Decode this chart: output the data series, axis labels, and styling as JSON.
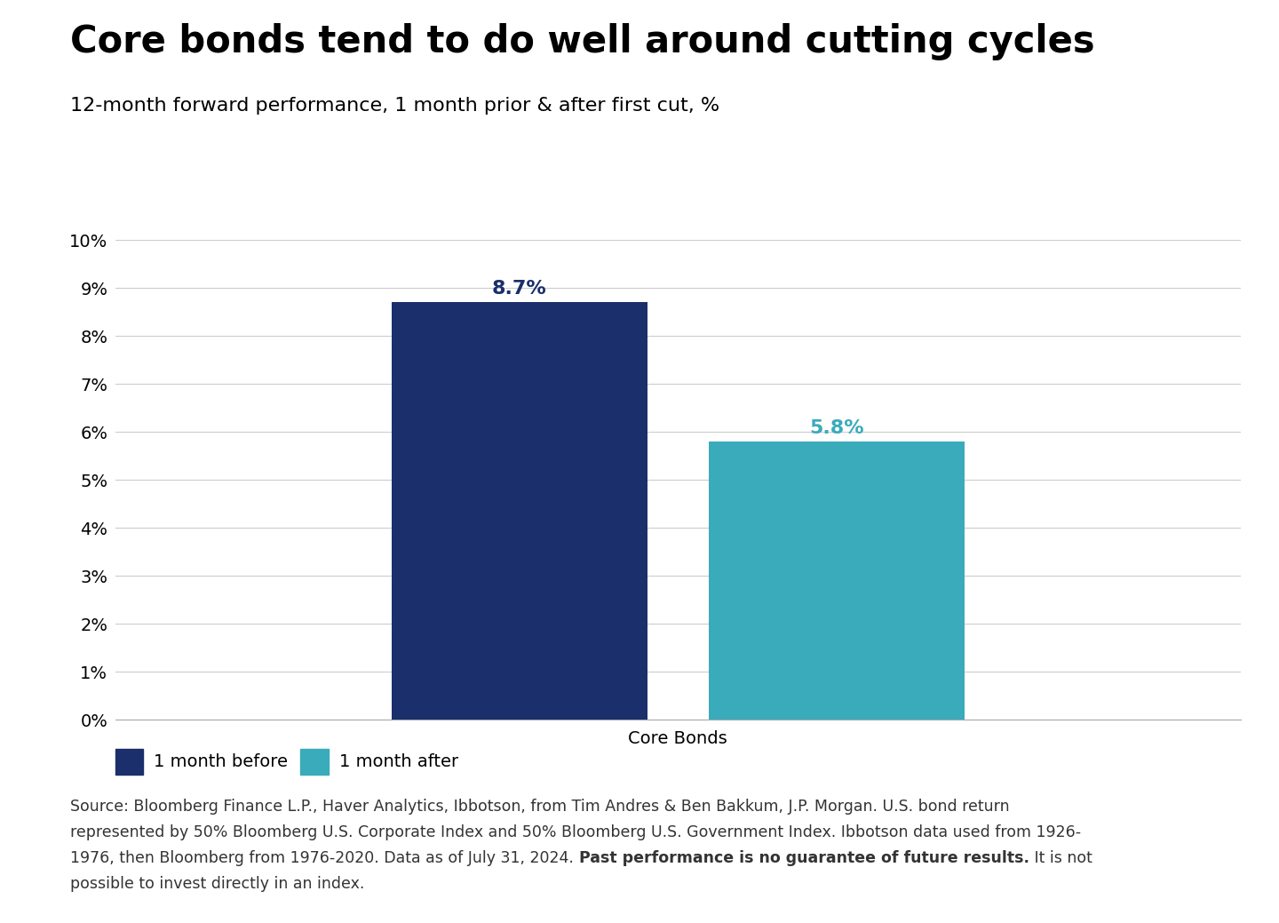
{
  "title": "Core bonds tend to do well around cutting cycles",
  "subtitle": "12-month forward performance, 1 month prior & after first cut, %",
  "categories": [
    "Core Bonds"
  ],
  "values_before": [
    8.7
  ],
  "values_after": [
    5.8
  ],
  "color_before": "#1a2f6b",
  "color_after": "#3aabbb",
  "label_before": "1 month before",
  "label_after": "1 month after",
  "xlabel": "Core Bonds",
  "ylim": [
    0,
    10
  ],
  "yticks": [
    0,
    1,
    2,
    3,
    4,
    5,
    6,
    7,
    8,
    9,
    10
  ],
  "ytick_labels": [
    "0%",
    "1%",
    "2%",
    "3%",
    "4%",
    "5%",
    "6%",
    "7%",
    "8%",
    "9%",
    "10%"
  ],
  "bar_label_before": "8.7%",
  "bar_label_after": "5.8%",
  "source_line1": "Source: Bloomberg Finance L.P., Haver Analytics, Ibbotson, from Tim Andres & Ben Bakkum, J.P. Morgan. U.S. bond return",
  "source_line2": "represented by 50% Bloomberg U.S. Corporate Index and 50% Bloomberg U.S. Government Index. Ibbotson data used from 1926-",
  "source_line3_normal": "1976, then Bloomberg from 1976-2020. Data as of July 31, 2024. ",
  "source_line3_bold": "Past performance is no guarantee of future results.",
  "source_line3_end": " It is not",
  "source_line4": "possible to invest directly in an index.",
  "background_color": "#ffffff",
  "grid_color": "#cccccc",
  "title_fontsize": 30,
  "subtitle_fontsize": 16,
  "axis_fontsize": 14,
  "bar_label_fontsize": 16,
  "legend_fontsize": 14,
  "source_fontsize": 12.5
}
